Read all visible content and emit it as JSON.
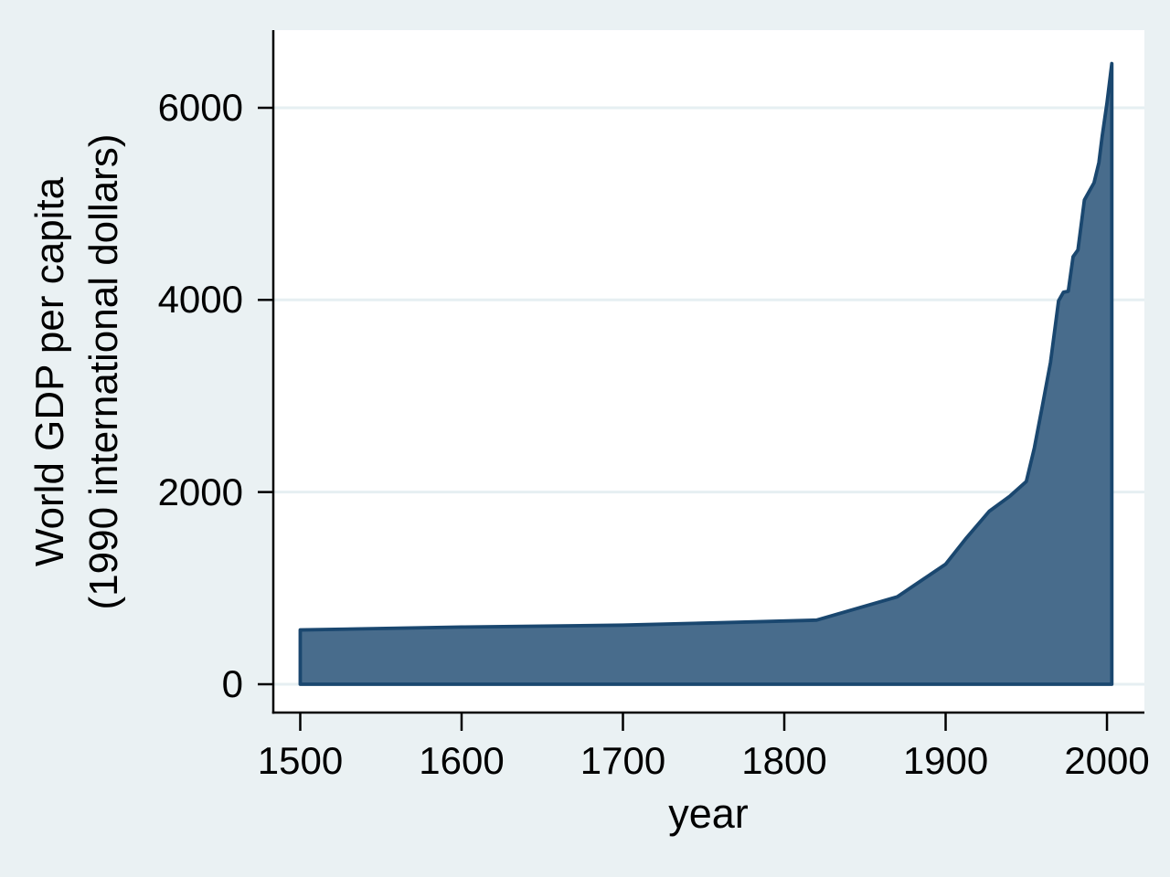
{
  "figure": {
    "background_color": "#eaf1f3",
    "plot_background_color": "#ffffff",
    "grid_color": "#e6eff2",
    "axis_color": "#000000",
    "tick_label_color": "#000000",
    "area_fill_color": "#486c8c",
    "area_line_color": "#1a476f"
  },
  "chart_data": {
    "type": "area",
    "title": "",
    "xlabel": "year",
    "ylabel": "World GDP per capita\n(1990 international dollars)",
    "ylabel_lines": [
      "World GDP per capita",
      "(1990 international dollars)"
    ],
    "legend": "none",
    "grid": true,
    "xlim": [
      1483.3,
      2023.2
    ],
    "ylim": [
      -295,
      6808
    ],
    "x_ticks": {
      "values": [
        1500,
        1600,
        1700,
        1800,
        1900,
        2000
      ],
      "labels": [
        "1500",
        "1600",
        "1700",
        "1800",
        "1900",
        "2000"
      ]
    },
    "y_ticks": {
      "values": [
        0,
        2000,
        4000,
        6000
      ],
      "labels": [
        "0",
        "2000",
        "4000",
        "6000"
      ]
    },
    "baseline": 0,
    "series": [
      {
        "name": "World GDP per capita (1990 international dollars)",
        "x": [
          1500,
          1600,
          1700,
          1760,
          1820,
          1870,
          1900,
          1913,
          1927,
          1940,
          1950,
          1955,
          1960,
          1965,
          1970,
          1973,
          1976,
          1979,
          1982,
          1986,
          1989,
          1992,
          1995,
          1997,
          2000,
          2003
        ],
        "values": [
          565,
          595,
          615,
          640,
          667,
          910,
          1250,
          1525,
          1800,
          1960,
          2110,
          2460,
          2900,
          3350,
          3990,
          4080,
          4090,
          4450,
          4520,
          5040,
          5130,
          5220,
          5430,
          5700,
          6050,
          6460
        ]
      }
    ]
  }
}
